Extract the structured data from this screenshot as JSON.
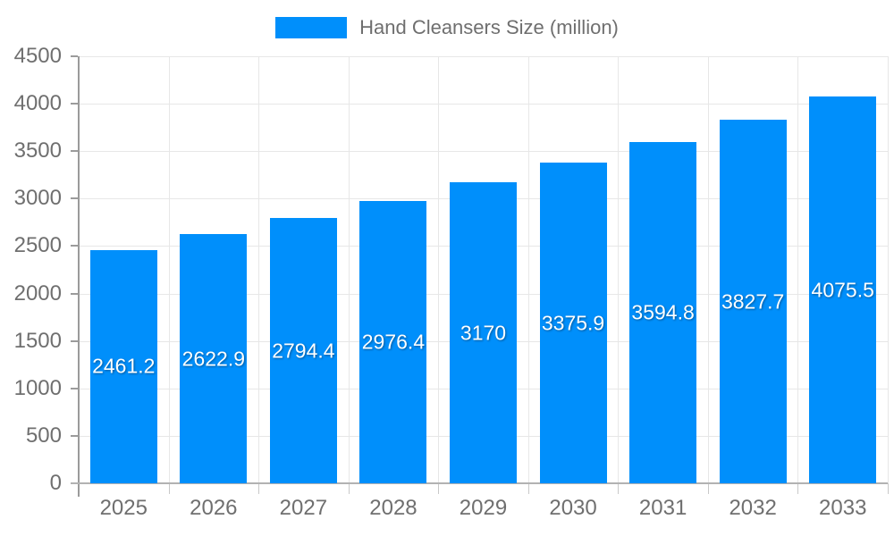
{
  "legend": {
    "label": "Hand Cleansers Size (million)",
    "swatch_color": "#008FFB"
  },
  "chart_data": {
    "type": "bar",
    "title": "Hand Cleansers Size (million)",
    "series": [
      {
        "name": "Hand Cleansers Size (million)",
        "values": [
          2461.2,
          2622.9,
          2794.4,
          2976.4,
          3170,
          3375.9,
          3594.8,
          3827.7,
          4075.5
        ]
      }
    ],
    "categories": [
      "2025",
      "2026",
      "2027",
      "2028",
      "2029",
      "2030",
      "2031",
      "2032",
      "2033"
    ],
    "data_labels": [
      "2461.2",
      "2622.9",
      "2794.4",
      "2976.4",
      "3170",
      "3375.9",
      "3594.8",
      "3827.7",
      "4075.5"
    ],
    "xlabel": "",
    "ylabel": "",
    "ylim": [
      0,
      4500
    ],
    "ytick_step": 500,
    "ytick_labels": [
      "0",
      "500",
      "1000",
      "1500",
      "2000",
      "2500",
      "3000",
      "3500",
      "4000",
      "4500"
    ],
    "grid": true,
    "legend_position": "top",
    "colors": {
      "bar": "#008FFB",
      "data_label": "#ffffff",
      "axis_label": "#6f6f6f",
      "grid_line": "#e7e7e7",
      "axis_line": "#9b9b9b",
      "background": "#ffffff"
    }
  }
}
